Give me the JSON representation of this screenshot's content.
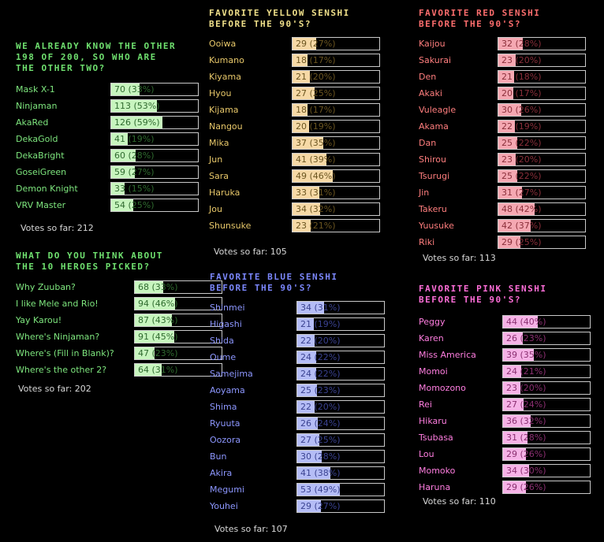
{
  "colors": {
    "green": {
      "title": "#6fe06f",
      "label": "#7ee67e",
      "fill": "#c8f5bf",
      "text": "#2f6a2f"
    },
    "yellow": {
      "title": "#f0e08a",
      "label": "#e8c86a",
      "fill": "#f6d9a6",
      "text": "#6b5520"
    },
    "red": {
      "title": "#ff6e6e",
      "label": "#ff7e7e",
      "fill": "#f5a8b2",
      "text": "#8a2f3a"
    },
    "blue": {
      "title": "#7c88ff",
      "label": "#8d97ff",
      "fill": "#b5bdf6",
      "text": "#3a4290"
    },
    "pink": {
      "title": "#ff6ed8",
      "label": "#ff7ee0",
      "fill": "#f6b3e7",
      "text": "#8a2f70"
    }
  },
  "polls": [
    {
      "id": "other-two",
      "title": "WE ALREADY KNOW THE OTHER 198 OF 200, SO WHO ARE THE OTHER TWO?",
      "color": "green",
      "options": [
        {
          "label": "Mask X-1",
          "value": "70 (33%)",
          "pct": 33
        },
        {
          "label": "Ninjaman",
          "value": "113 (53%)",
          "pct": 53
        },
        {
          "label": "AkaRed",
          "value": "126 (59%)",
          "pct": 59
        },
        {
          "label": "DekaGold",
          "value": "41 (19%)",
          "pct": 19
        },
        {
          "label": "DekaBright",
          "value": "60 (28%)",
          "pct": 28
        },
        {
          "label": "GoseiGreen",
          "value": "59 (27%)",
          "pct": 27
        },
        {
          "label": "Demon Knight",
          "value": "33 (15%)",
          "pct": 15
        },
        {
          "label": "VRV Master",
          "value": "54 (25%)",
          "pct": 25
        }
      ],
      "votes": "Votes so far: 212"
    },
    {
      "id": "ten-heroes",
      "title": "WHAT DO YOU THINK ABOUT THE 10 HEROES PICKED?",
      "color": "green",
      "options": [
        {
          "label": "Why Zuuban?",
          "value": "68 (33%)",
          "pct": 33
        },
        {
          "label": "I like Mele and Rio!",
          "value": "94 (46%)",
          "pct": 46
        },
        {
          "label": "Yay Karou!",
          "value": "87 (43%)",
          "pct": 43
        },
        {
          "label": "Where's Ninjaman?",
          "value": "91 (45%)",
          "pct": 45
        },
        {
          "label": "Where's (Fill in Blank)?",
          "value": "47 (23%)",
          "pct": 23
        },
        {
          "label": "Where's the other 2?",
          "value": "64 (31%)",
          "pct": 31
        }
      ],
      "votes": "Votes so far: 202"
    },
    {
      "id": "yellow",
      "title": "FAVORITE YELLOW SENSHI BEFORE THE 90'S?",
      "color": "yellow",
      "options": [
        {
          "label": "Ooiwa",
          "value": "29 (27%)",
          "pct": 27
        },
        {
          "label": "Kumano",
          "value": "18 (17%)",
          "pct": 17
        },
        {
          "label": "Kiyama",
          "value": "21 (20%)",
          "pct": 20
        },
        {
          "label": "Hyou",
          "value": "27 (25%)",
          "pct": 25
        },
        {
          "label": "Kijama",
          "value": "18 (17%)",
          "pct": 17
        },
        {
          "label": "Nangou",
          "value": "20 (19%)",
          "pct": 19
        },
        {
          "label": "Mika",
          "value": "37 (35%)",
          "pct": 35
        },
        {
          "label": "Jun",
          "value": "41 (39%)",
          "pct": 39
        },
        {
          "label": "Sara",
          "value": "49 (46%)",
          "pct": 46
        },
        {
          "label": "Haruka",
          "value": "33 (31%)",
          "pct": 31
        },
        {
          "label": "Jou",
          "value": "34 (32%)",
          "pct": 32
        },
        {
          "label": "Shunsuke",
          "value": "23 (21%)",
          "pct": 21
        }
      ],
      "votes": "Votes so far: 105"
    },
    {
      "id": "blue",
      "title": "FAVORITE BLUE SENSHI BEFORE THE 90'S?",
      "color": "blue",
      "options": [
        {
          "label": "Shinmei",
          "value": "34 (31%)",
          "pct": 31
        },
        {
          "label": "Higashi",
          "value": "21 (19%)",
          "pct": 19
        },
        {
          "label": "Shida",
          "value": "22 (20%)",
          "pct": 20
        },
        {
          "label": "Oume",
          "value": "24 (22%)",
          "pct": 22
        },
        {
          "label": "Samejima",
          "value": "24 (22%)",
          "pct": 22
        },
        {
          "label": "Aoyama",
          "value": "25 (23%)",
          "pct": 23
        },
        {
          "label": "Shima",
          "value": "22 (20%)",
          "pct": 20
        },
        {
          "label": "Ryuuta",
          "value": "26 (24%)",
          "pct": 24
        },
        {
          "label": "Oozora",
          "value": "27 (25%)",
          "pct": 25
        },
        {
          "label": "Bun",
          "value": "30 (28%)",
          "pct": 28
        },
        {
          "label": "Akira",
          "value": "41 (38%)",
          "pct": 38
        },
        {
          "label": "Megumi",
          "value": "53 (49%)",
          "pct": 49
        },
        {
          "label": "Youhei",
          "value": "29 (27%)",
          "pct": 27
        }
      ],
      "votes": "Votes so far: 107"
    },
    {
      "id": "red",
      "title": "FAVORITE RED SENSHI BEFORE THE 90'S?",
      "color": "red",
      "options": [
        {
          "label": "Kaijou",
          "value": "32 (28%)",
          "pct": 28
        },
        {
          "label": "Sakurai",
          "value": "23 (20%)",
          "pct": 20
        },
        {
          "label": "Den",
          "value": "21 (18%)",
          "pct": 18
        },
        {
          "label": "Akaki",
          "value": "20 (17%)",
          "pct": 17
        },
        {
          "label": "Vuleagle",
          "value": "30 (26%)",
          "pct": 26
        },
        {
          "label": "Akama",
          "value": "22 (19%)",
          "pct": 19
        },
        {
          "label": "Dan",
          "value": "25 (22%)",
          "pct": 22
        },
        {
          "label": "Shirou",
          "value": "23 (20%)",
          "pct": 20
        },
        {
          "label": "Tsurugi",
          "value": "25 (22%)",
          "pct": 22
        },
        {
          "label": "Jin",
          "value": "31 (27%)",
          "pct": 27
        },
        {
          "label": "Takeru",
          "value": "48 (42%)",
          "pct": 42
        },
        {
          "label": "Yuusuke",
          "value": "42 (37%)",
          "pct": 37
        },
        {
          "label": "Riki",
          "value": "29 (25%)",
          "pct": 25
        }
      ],
      "votes": "Votes so far: 113"
    },
    {
      "id": "pink",
      "title": "FAVORITE PINK SENSHI BEFORE THE 90'S?",
      "color": "pink",
      "options": [
        {
          "label": "Peggy",
          "value": "44 (40%)",
          "pct": 40
        },
        {
          "label": "Karen",
          "value": "26 (23%)",
          "pct": 23
        },
        {
          "label": "Miss America",
          "value": "39 (35%)",
          "pct": 35
        },
        {
          "label": "Momoi",
          "value": "24 (21%)",
          "pct": 21
        },
        {
          "label": "Momozono",
          "value": "23 (20%)",
          "pct": 20
        },
        {
          "label": "Rei",
          "value": "27 (24%)",
          "pct": 24
        },
        {
          "label": "Hikaru",
          "value": "36 (32%)",
          "pct": 32
        },
        {
          "label": "Tsubasa",
          "value": "31 (28%)",
          "pct": 28
        },
        {
          "label": "Lou",
          "value": "29 (26%)",
          "pct": 26
        },
        {
          "label": "Momoko",
          "value": "34 (30%)",
          "pct": 30
        },
        {
          "label": "Haruna",
          "value": "29 (26%)",
          "pct": 26
        }
      ],
      "votes": "Votes so far: 110"
    }
  ]
}
